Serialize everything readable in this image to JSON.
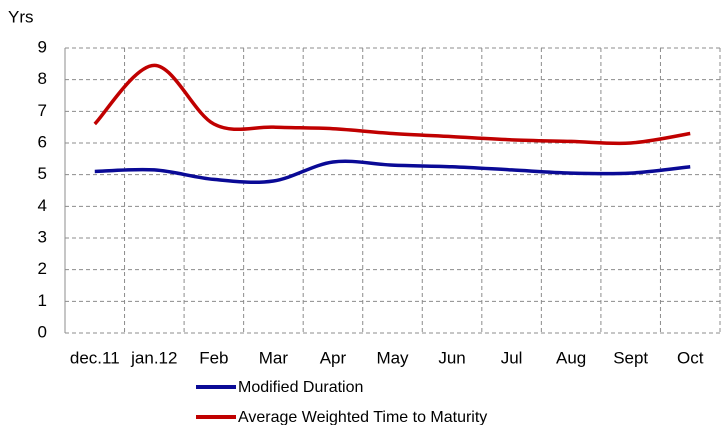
{
  "chart_data": {
    "type": "line",
    "y_axis_label": "Yrs",
    "categories": [
      "dec.11",
      "jan.12",
      "Feb",
      "Mar",
      "Apr",
      "May",
      "Jun",
      "Jul",
      "Aug",
      "Sept",
      "Oct"
    ],
    "series": [
      {
        "name": "Modified Duration",
        "color": "#0a0a96",
        "values": [
          5.1,
          5.15,
          4.85,
          4.8,
          5.4,
          5.3,
          5.25,
          5.15,
          5.05,
          5.05,
          5.25
        ]
      },
      {
        "name": "Average Weighted Time to Maturity",
        "color": "#c00000",
        "values": [
          6.6,
          8.45,
          6.6,
          6.5,
          6.45,
          6.3,
          6.2,
          6.1,
          6.05,
          6.0,
          6.3
        ]
      }
    ],
    "ylim": [
      0,
      9
    ],
    "yticks": [
      0,
      1,
      2,
      3,
      4,
      5,
      6,
      7,
      8,
      9
    ],
    "grid": true
  }
}
